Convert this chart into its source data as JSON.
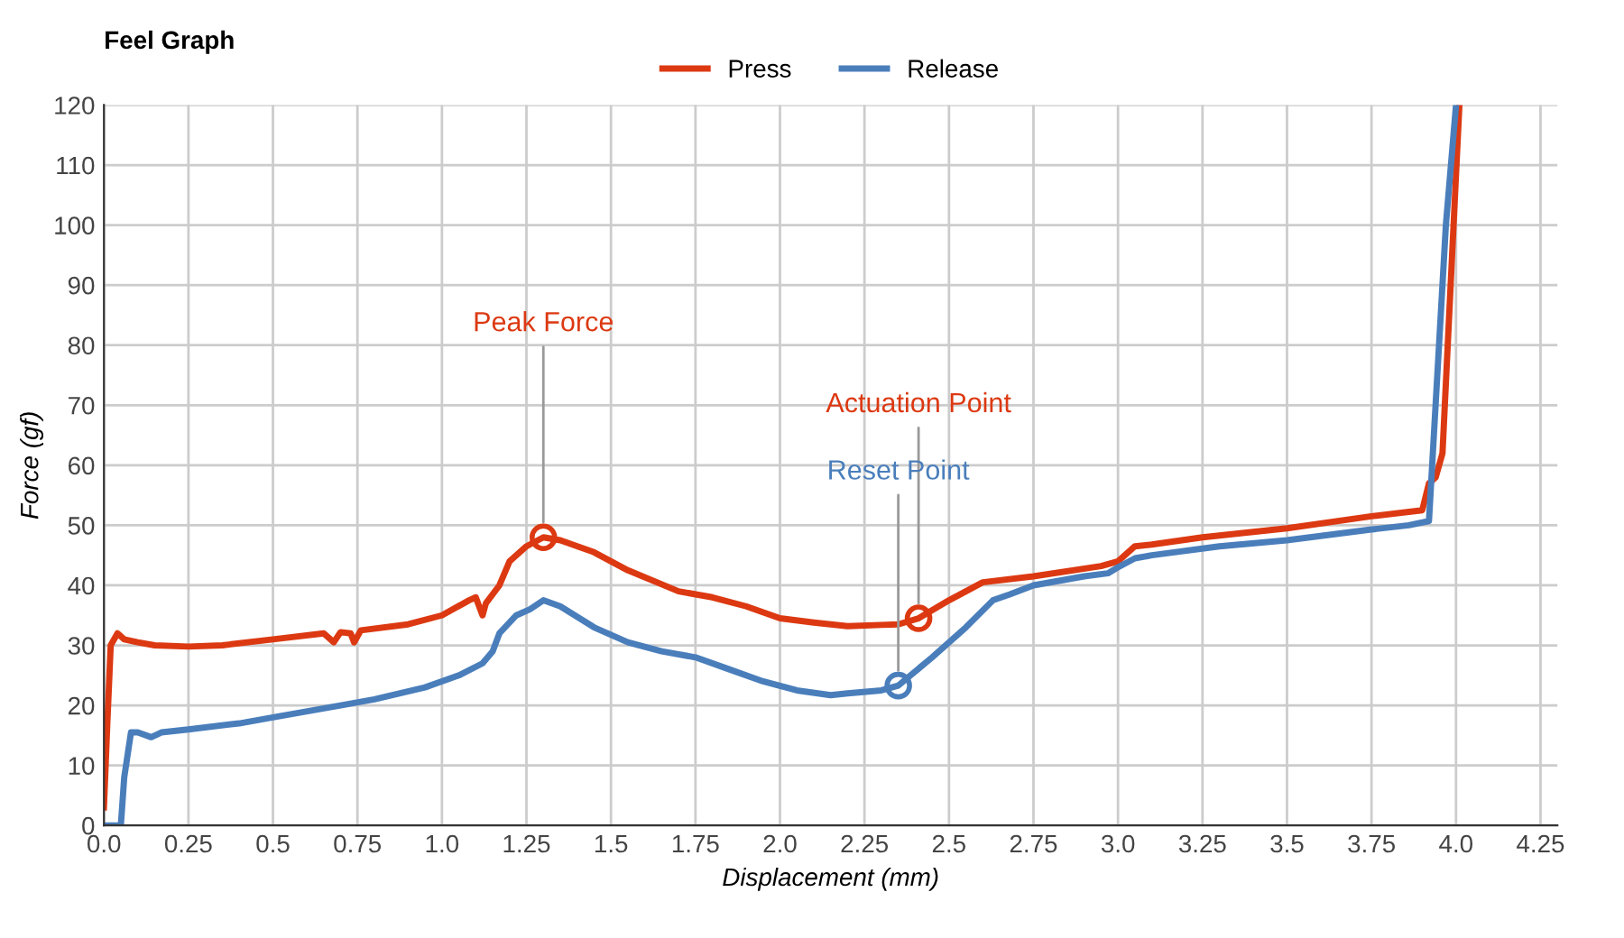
{
  "chart_data": {
    "type": "line",
    "title": "Feel Graph",
    "xlabel": "Displacement (mm)",
    "ylabel": "Force (gf)",
    "xlim": [
      0,
      4.3
    ],
    "ylim": [
      0,
      120
    ],
    "xticks": [
      {
        "value": 0,
        "label": "0.0"
      },
      0.25,
      0.5,
      0.75,
      {
        "value": 1,
        "label": "1.0"
      },
      1.25,
      1.5,
      1.75,
      {
        "value": 2,
        "label": "2.0"
      },
      2.25,
      2.5,
      2.75,
      {
        "value": 3,
        "label": "3.0"
      },
      3.25,
      3.5,
      3.75,
      {
        "value": 4,
        "label": "4.0"
      },
      4.25
    ],
    "yticks": [
      0,
      10,
      20,
      30,
      40,
      50,
      60,
      70,
      80,
      90,
      100,
      110,
      120
    ],
    "grid": true,
    "legend": "top",
    "marker": "none",
    "line_style": "solid",
    "series": [
      {
        "name": "Press",
        "color": "#dc3912",
        "x": [
          0,
          0.01,
          0.02,
          0.04,
          0.06,
          0.1,
          0.15,
          0.25,
          0.35,
          0.5,
          0.65,
          0.68,
          0.7,
          0.73,
          0.74,
          0.76,
          0.9,
          1.0,
          1.08,
          1.1,
          1.12,
          1.13,
          1.17,
          1.2,
          1.25,
          1.3,
          1.35,
          1.45,
          1.55,
          1.7,
          1.8,
          1.9,
          2.0,
          2.1,
          2.2,
          2.3,
          2.35,
          2.41,
          2.5,
          2.6,
          2.75,
          2.95,
          3.0,
          3.05,
          3.1,
          3.25,
          3.5,
          3.75,
          3.9,
          3.92,
          3.94,
          3.96,
          4.01
        ],
        "values": [
          3,
          17,
          30,
          32,
          31,
          30.5,
          30,
          29.8,
          30,
          31,
          32,
          30.5,
          32.2,
          32,
          30.5,
          32.5,
          33.5,
          35,
          37.5,
          38,
          35,
          37,
          40,
          44,
          46.5,
          48,
          47.5,
          45.5,
          42.5,
          39,
          38,
          36.5,
          34.5,
          33.8,
          33.2,
          33.4,
          33.5,
          34.5,
          37.5,
          40.5,
          41.5,
          43.2,
          44,
          46.5,
          46.8,
          48,
          49.5,
          51.5,
          52.5,
          57,
          58,
          62,
          120
        ]
      },
      {
        "name": "Release",
        "color": "#4a7ebb",
        "x": [
          0,
          0.05,
          0.06,
          0.08,
          0.1,
          0.14,
          0.17,
          0.25,
          0.4,
          0.5,
          0.7,
          0.8,
          0.95,
          1.05,
          1.12,
          1.15,
          1.17,
          1.22,
          1.26,
          1.3,
          1.35,
          1.45,
          1.55,
          1.65,
          1.75,
          1.85,
          1.95,
          2.05,
          2.15,
          2.2,
          2.3,
          2.35,
          2.45,
          2.55,
          2.63,
          2.68,
          2.75,
          2.9,
          2.97,
          3.0,
          3.05,
          3.1,
          3.3,
          3.5,
          3.75,
          3.86,
          3.92,
          3.97,
          4.0
        ],
        "values": [
          0,
          0,
          8,
          15.5,
          15.5,
          14.7,
          15.5,
          16,
          17,
          18,
          20,
          21,
          23,
          25,
          27,
          29,
          32,
          35,
          36,
          37.5,
          36.5,
          33,
          30.5,
          29,
          28,
          26,
          24,
          22.5,
          21.7,
          22,
          22.5,
          23.3,
          28,
          33,
          37.5,
          38.5,
          40,
          41.5,
          42,
          43,
          44.5,
          45,
          46.5,
          47.5,
          49.3,
          50,
          50.7,
          100,
          120
        ]
      }
    ],
    "annotations": [
      {
        "text": "Peak Force",
        "x": 1.3,
        "y": 48
      },
      {
        "text": "Actuation Point",
        "x": 2.41,
        "y": 34.5
      },
      {
        "text": "Reset Point",
        "x": 2.35,
        "y": 23.3
      }
    ]
  }
}
